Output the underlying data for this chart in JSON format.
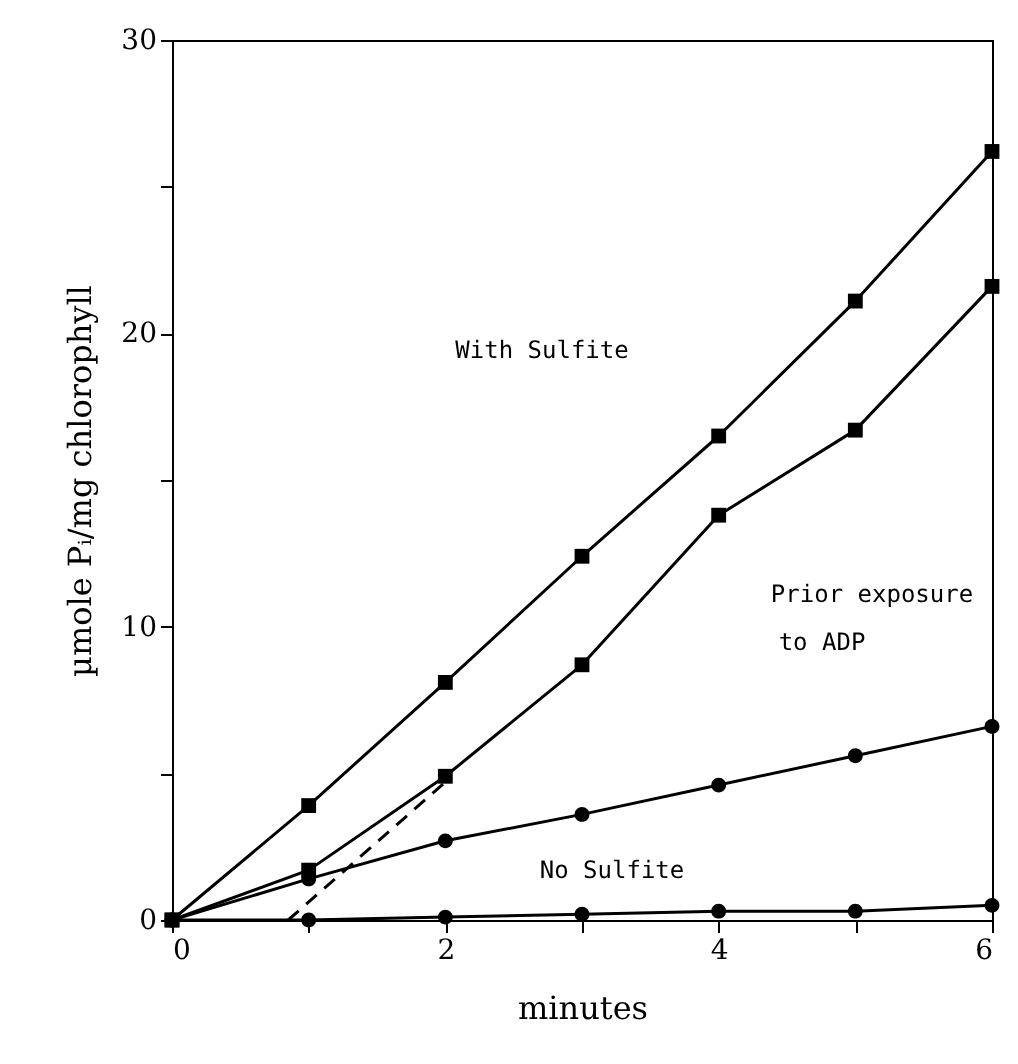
{
  "chart_data": {
    "type": "line",
    "xlabel": "minutes",
    "ylabel": "µmole Pᵢ/mg chlorophyll",
    "xlim": [
      0,
      6
    ],
    "xticks": [
      0,
      {
        "value": 1,
        "label": null
      },
      2,
      {
        "value": 3,
        "label": null
      },
      4,
      {
        "value": 5,
        "label": null
      },
      6
    ],
    "ylim": [
      0,
      30
    ],
    "yticks": [
      0,
      {
        "value": 5,
        "label": null
      },
      10,
      {
        "value": 15,
        "label": null
      },
      20,
      {
        "value": 25,
        "label": null
      },
      30
    ],
    "grid": false,
    "series": [
      {
        "color": "#000000",
        "marker": "square",
        "x": [
          0,
          1,
          2,
          3,
          4,
          5,
          6
        ],
        "values": [
          0,
          3.9,
          8.1,
          12.4,
          16.5,
          21.1,
          26.2
        ]
      },
      {
        "color": "#000000",
        "marker": "square",
        "x": [
          0,
          1,
          2,
          3,
          4,
          5,
          6
        ],
        "values": [
          0,
          1.7,
          4.9,
          8.7,
          13.8,
          16.7,
          21.6
        ]
      },
      {
        "color": "#000000",
        "marker": "circle",
        "x": [
          0,
          1,
          2,
          3,
          4,
          5,
          6
        ],
        "values": [
          0,
          1.4,
          2.7,
          3.6,
          4.6,
          5.6,
          6.6
        ]
      },
      {
        "color": "#000000",
        "marker": "circle",
        "x": [
          0,
          1,
          2,
          3,
          4,
          5,
          6
        ],
        "values": [
          0,
          0,
          0.1,
          0.2,
          0.3,
          0.3,
          0.5
        ]
      },
      {
        "color": "#000000",
        "marker": "none",
        "line_style": "dashed",
        "x": [
          0.85,
          2
        ],
        "values": [
          0,
          4.7
        ]
      }
    ],
    "annotations": [
      "With Sulfite",
      "Prior exposure",
      "to ADP",
      "No Sulfite"
    ]
  }
}
